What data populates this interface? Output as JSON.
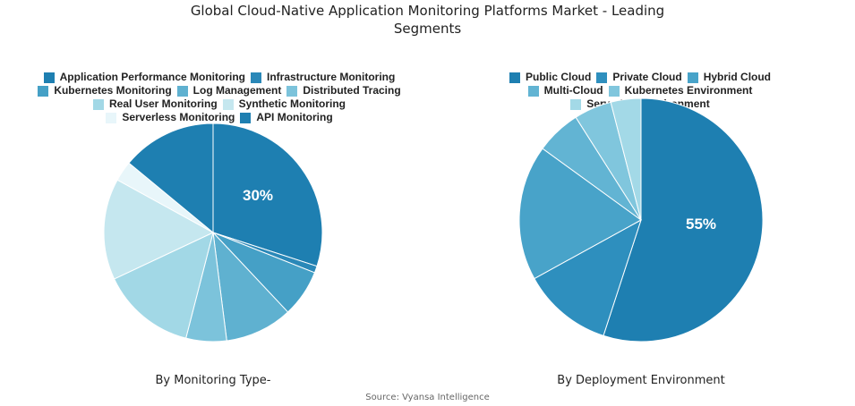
{
  "title_line1": "Global Cloud-Native Application Monitoring Platforms Market - Leading",
  "title_line2": "Segments",
  "source": "Source: Vyansa Intelligence",
  "chart_data": [
    {
      "type": "pie",
      "caption": "By Monitoring Type-",
      "legend_placement": "top",
      "highlight_label": "30%",
      "slices": [
        {
          "label": "Application Performance Monitoring",
          "value": 30,
          "color": "#1e7fb1"
        },
        {
          "label": "Infrastructure Monitoring",
          "value": 1,
          "color": "#2a88b8"
        },
        {
          "label": "Kubernetes Monitoring",
          "value": 7,
          "color": "#45a0c6"
        },
        {
          "label": "Log Management",
          "value": 10,
          "color": "#5fb1d0"
        },
        {
          "label": "Distributed Tracing",
          "value": 6,
          "color": "#7cc3db"
        },
        {
          "label": "Real User Monitoring",
          "value": 14,
          "color": "#a2d8e6"
        },
        {
          "label": "Synthetic Monitoring",
          "value": 15,
          "color": "#c5e7ef"
        },
        {
          "label": "Serverless Monitoring",
          "value": 3,
          "color": "#e8f6fa"
        },
        {
          "label": "API Monitoring",
          "value": 14,
          "color": "#1e7fb1"
        }
      ]
    },
    {
      "type": "pie",
      "caption": "By Deployment Environment",
      "legend_placement": "top",
      "highlight_label": "55%",
      "slices": [
        {
          "label": "Public Cloud",
          "value": 55,
          "color": "#1e7fb1"
        },
        {
          "label": "Private Cloud",
          "value": 12,
          "color": "#2e8fbe"
        },
        {
          "label": "Hybrid Cloud",
          "value": 18,
          "color": "#48a3c9"
        },
        {
          "label": "Multi-Cloud",
          "value": 6,
          "color": "#62b4d3"
        },
        {
          "label": "Kubernetes Environment",
          "value": 5,
          "color": "#80c6dd"
        },
        {
          "label": "Serverless Environment",
          "value": 4,
          "color": "#a3d9e7"
        }
      ]
    }
  ]
}
